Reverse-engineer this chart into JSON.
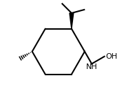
{
  "background_color": "#ffffff",
  "ring_color": "#000000",
  "line_width": 1.5,
  "font_size_nh": 8,
  "font_size_oh": 8,
  "figsize": [
    1.96,
    1.42
  ],
  "dpi": 100
}
